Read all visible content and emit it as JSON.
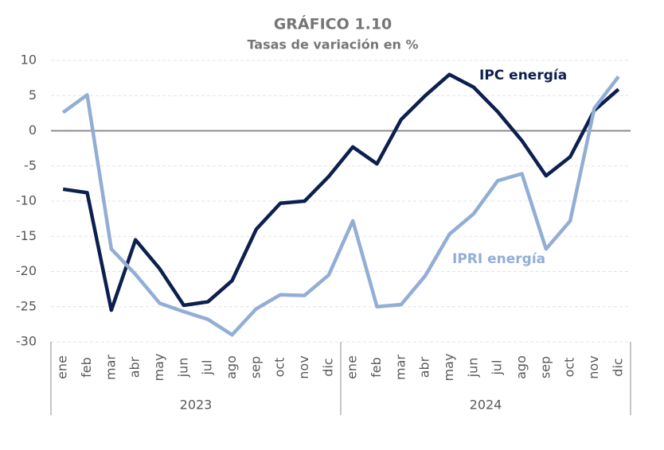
{
  "chart_data": {
    "type": "line",
    "title": "GRÁFICO 1.10",
    "subtitle": "Tasas de variación en %",
    "categories": [
      "ene",
      "feb",
      "mar",
      "abr",
      "may",
      "jun",
      "jul",
      "ago",
      "sep",
      "oct",
      "nov",
      "dic",
      "ene",
      "feb",
      "mar",
      "abr",
      "may",
      "jun",
      "jul",
      "ago",
      "sep",
      "oct",
      "nov",
      "dic"
    ],
    "groups": [
      "2023",
      "2024"
    ],
    "series": [
      {
        "name": "IPC energía",
        "color": "#0d1f4f",
        "values": [
          -8.3,
          -8.8,
          -25.5,
          -15.5,
          -19.6,
          -24.8,
          -24.3,
          -21.3,
          -14,
          -10.3,
          -10,
          -6.5,
          -2.3,
          -4.7,
          1.6,
          5,
          8,
          6.2,
          2.7,
          -1.4,
          -6.4,
          -3.7,
          2.9,
          5.9
        ]
      },
      {
        "name": "IPRI energía",
        "color": "#92aed6",
        "values": [
          2.6,
          5.1,
          -16.8,
          -20.4,
          -24.5,
          -25.7,
          -26.8,
          -29,
          -25.3,
          -23.3,
          -23.4,
          -20.5,
          -12.8,
          -25,
          -24.7,
          -20.6,
          -14.7,
          -11.8,
          -7.1,
          -6.1,
          -16.8,
          -12.8,
          3.2,
          7.7
        ]
      }
    ],
    "ylim": [
      -30,
      10
    ],
    "yticks": [
      -30,
      -25,
      -20,
      -15,
      -10,
      -5,
      0,
      5,
      10
    ],
    "grid": true
  }
}
